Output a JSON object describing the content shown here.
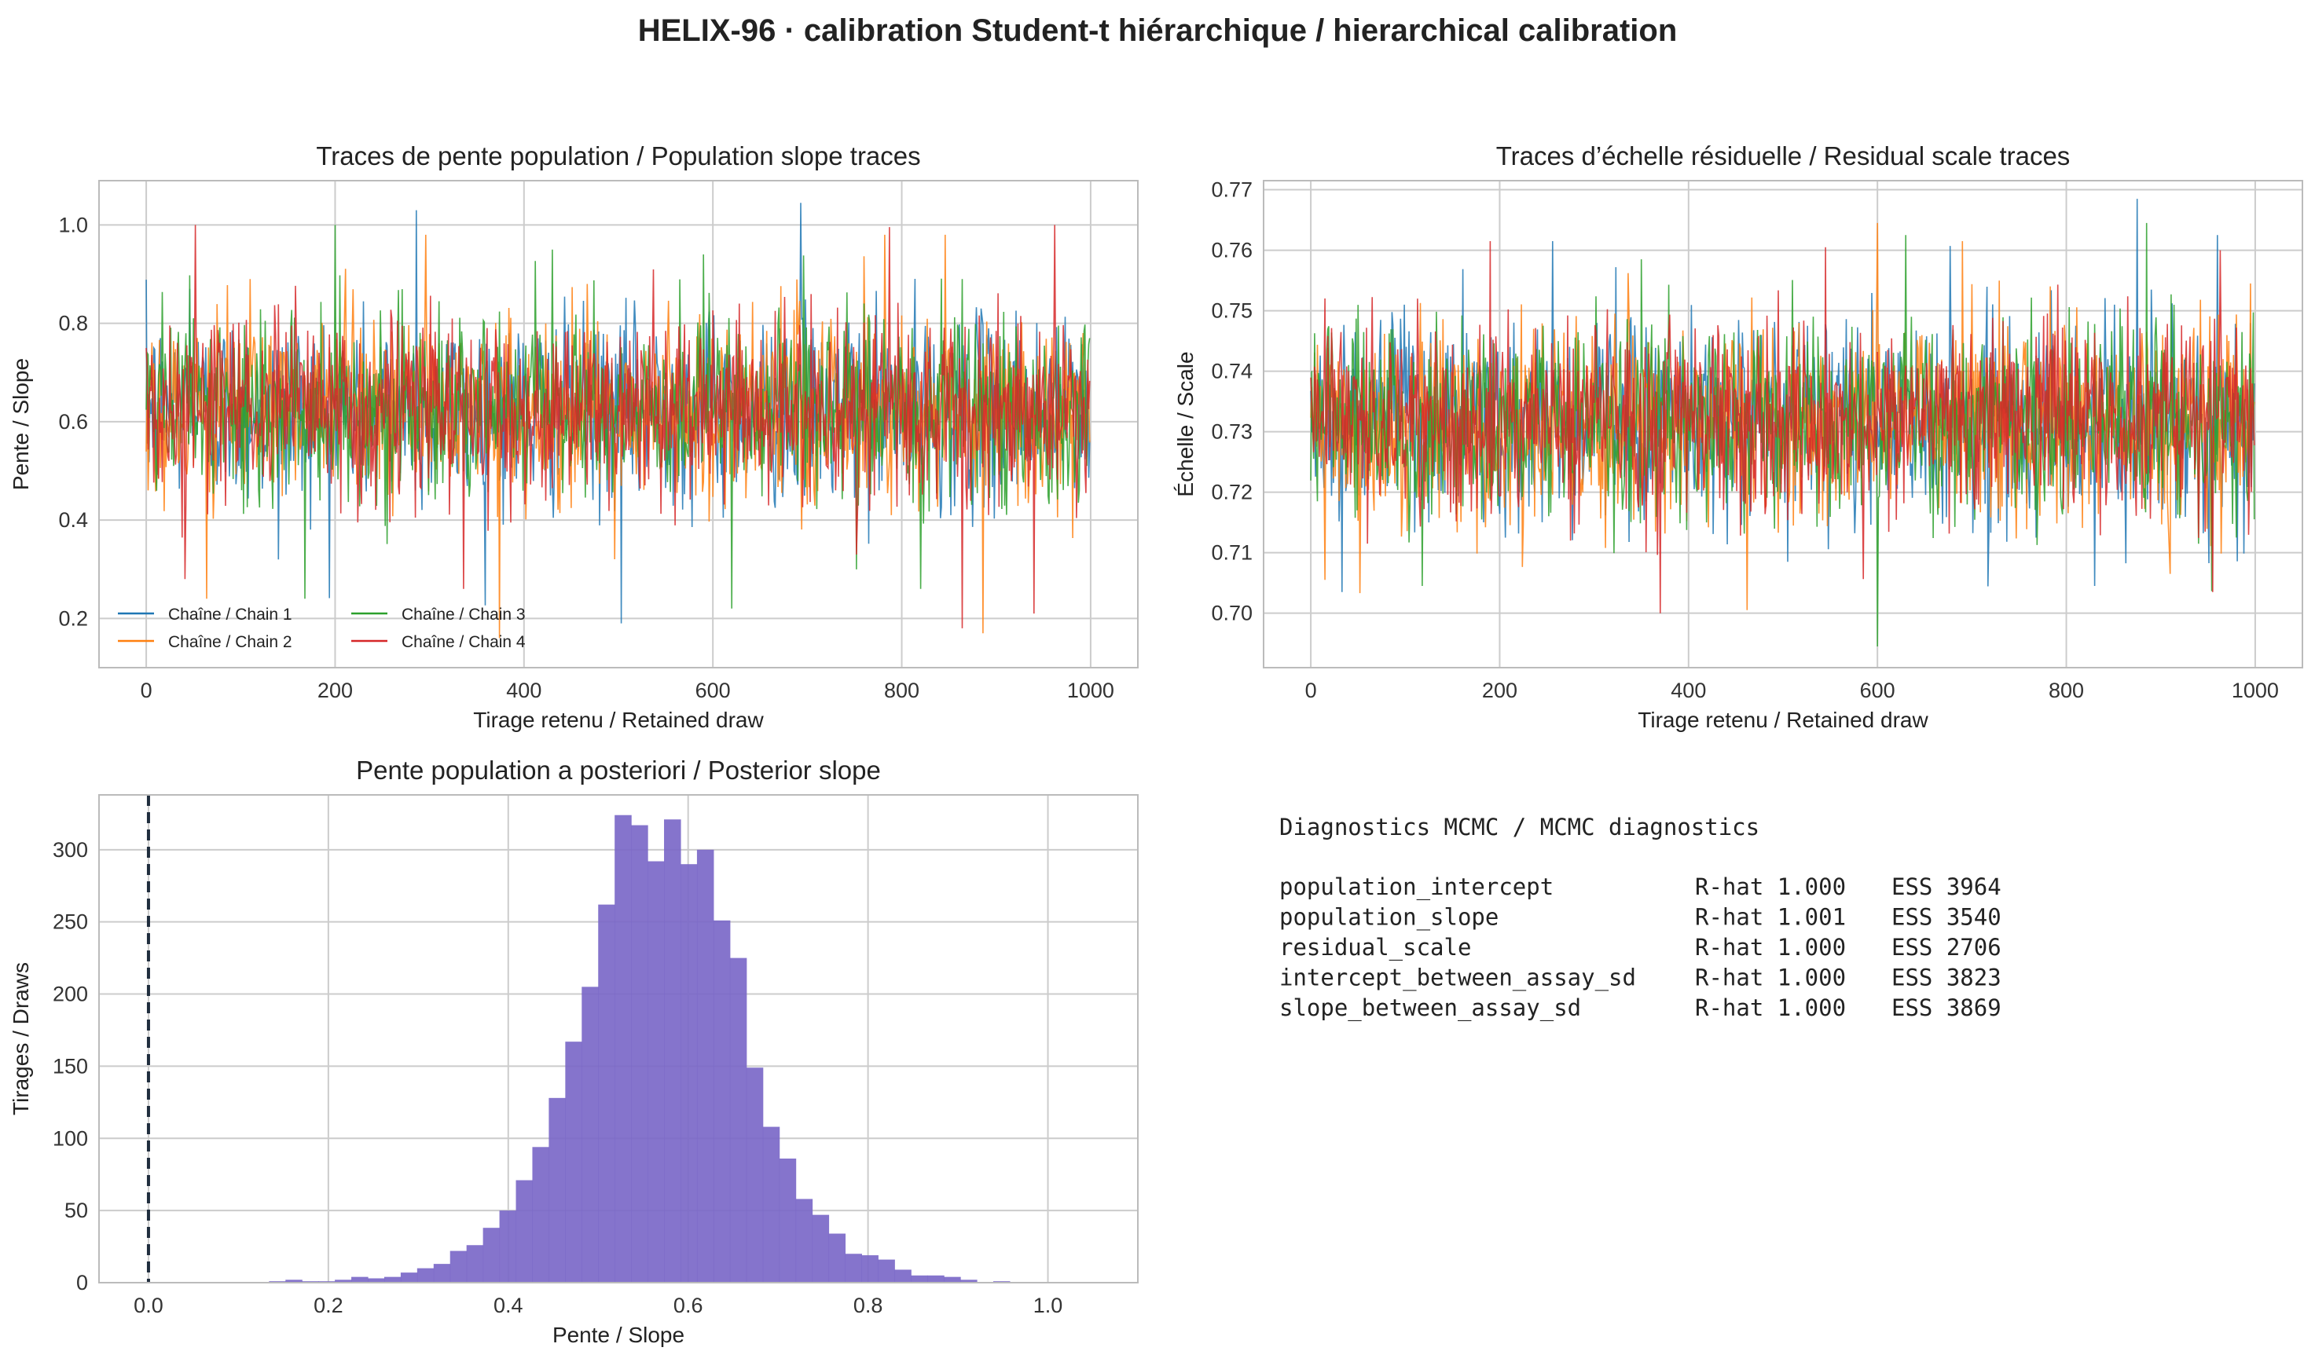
{
  "figure": {
    "title": "HELIX-96 · calibration Student-t hiérarchique / hierarchical calibration"
  },
  "chart_data": [
    {
      "type": "line",
      "id": "slope_traces",
      "title": "Traces de pente population / Population slope traces",
      "xlabel": "Tirage retenu / Retained draw",
      "ylabel": "Pente / Slope",
      "xlim": [
        -50,
        1050
      ],
      "ylim": [
        0.1,
        1.09
      ],
      "xticks": [
        0,
        200,
        400,
        600,
        800,
        1000
      ],
      "yticks": [
        0.2,
        0.4,
        0.6,
        0.8,
        1.0
      ],
      "ytick_labels": [
        "0.2",
        "0.4",
        "0.6",
        "0.8",
        "1.0"
      ],
      "grid": true,
      "legend": "lower-left",
      "n_draws": 1000,
      "series": [
        {
          "name": "Chaîne / Chain 1",
          "color": "#1f77b4",
          "center": 0.625,
          "spread": 0.095,
          "spikes": [
            [
              286,
              1.03
            ],
            [
              693,
              1.045
            ],
            [
              503,
              0.19
            ],
            [
              46,
              0.87
            ],
            [
              140,
              0.32
            ]
          ]
        },
        {
          "name": "Chaîne / Chain 2",
          "color": "#ff7f0e",
          "center": 0.625,
          "spread": 0.095,
          "spikes": [
            [
              64,
              0.24
            ],
            [
              296,
              0.98
            ],
            [
              374,
              0.16
            ],
            [
              886,
              0.17
            ],
            [
              782,
              0.98
            ],
            [
              846,
              0.98
            ],
            [
              110,
              0.89
            ]
          ]
        },
        {
          "name": "Chaîne / Chain 3",
          "color": "#2ca02c",
          "center": 0.625,
          "spread": 0.095,
          "spikes": [
            [
              200,
              1.0
            ],
            [
              168,
              0.24
            ],
            [
              620,
              0.22
            ],
            [
              820,
              0.26
            ],
            [
              430,
              0.95
            ],
            [
              590,
              0.94
            ]
          ]
        },
        {
          "name": "Chaîne / Chain 4",
          "color": "#d62728",
          "center": 0.625,
          "spread": 0.095,
          "spikes": [
            [
              52,
              1.0
            ],
            [
              41,
              0.28
            ],
            [
              864,
              0.18
            ],
            [
              962,
              1.0
            ],
            [
              940,
              0.21
            ],
            [
              336,
              0.26
            ],
            [
              752,
              0.33
            ]
          ]
        }
      ]
    },
    {
      "type": "line",
      "id": "scale_traces",
      "title": "Traces d’échelle résiduelle / Residual scale traces",
      "xlabel": "Tirage retenu / Retained draw",
      "ylabel": "Échelle / Scale",
      "xlim": [
        -50,
        1050
      ],
      "ylim": [
        0.691,
        0.7715
      ],
      "xticks": [
        0,
        200,
        400,
        600,
        800,
        1000
      ],
      "yticks": [
        0.7,
        0.71,
        0.72,
        0.73,
        0.74,
        0.75,
        0.76,
        0.77
      ],
      "ytick_labels": [
        "0.70",
        "0.71",
        "0.72",
        "0.73",
        "0.74",
        "0.75",
        "0.76",
        "0.77"
      ],
      "grid": true,
      "n_draws": 1000,
      "series": [
        {
          "color": "#1f77b4",
          "center": 0.7318,
          "spread": 0.0082,
          "spikes": [
            [
              875,
              0.7685
            ],
            [
              33,
              0.7035
            ],
            [
              256,
              0.7615
            ],
            [
              505,
              0.7085
            ],
            [
              960,
              0.7625
            ],
            [
              830,
              0.7045
            ]
          ]
        },
        {
          "color": "#ff7f0e",
          "center": 0.7318,
          "spread": 0.0082,
          "spikes": [
            [
              600,
              0.7645
            ],
            [
              462,
              0.7005
            ],
            [
              15,
              0.7055
            ],
            [
              690,
              0.7615
            ],
            [
              995,
              0.7545
            ],
            [
              910,
              0.7065
            ]
          ]
        },
        {
          "color": "#2ca02c",
          "center": 0.7318,
          "spread": 0.0082,
          "spikes": [
            [
              600,
              0.6945
            ],
            [
              630,
              0.7625
            ],
            [
              118,
              0.7045
            ],
            [
              885,
              0.7645
            ],
            [
              980,
              0.7125
            ],
            [
              350,
              0.7585
            ]
          ]
        },
        {
          "color": "#d62728",
          "center": 0.7318,
          "spread": 0.0082,
          "spikes": [
            [
              370,
              0.7
            ],
            [
              190,
              0.7615
            ],
            [
              955,
              0.7035
            ],
            [
              963,
              0.76
            ],
            [
              545,
              0.7605
            ],
            [
              60,
              0.7115
            ]
          ]
        }
      ]
    },
    {
      "type": "bar",
      "id": "slope_histogram",
      "title": "Pente population a posteriori / Posterior slope",
      "xlabel": "Pente / Slope",
      "ylabel": "Tirages / Draws",
      "xlim": [
        -0.055,
        1.1
      ],
      "ylim": [
        0,
        338
      ],
      "xticks": [
        0.0,
        0.2,
        0.4,
        0.6,
        0.8,
        1.0
      ],
      "xtick_labels": [
        "0.0",
        "0.2",
        "0.4",
        "0.6",
        "0.8",
        "1.0"
      ],
      "yticks": [
        0,
        50,
        100,
        150,
        200,
        250,
        300
      ],
      "grid": true,
      "color": "#7b68c8",
      "reference_line": {
        "x": 0.0,
        "style": "dashed",
        "color": "#1f2d3d"
      },
      "bin_start": 0.134,
      "bin_width": 0.0183,
      "counts": [
        1,
        2,
        1,
        1,
        2,
        4,
        3,
        4,
        7,
        10,
        13,
        22,
        26,
        38,
        50,
        71,
        94,
        128,
        167,
        205,
        262,
        324,
        317,
        292,
        321,
        290,
        300,
        251,
        225,
        149,
        108,
        86,
        58,
        47,
        34,
        20,
        19,
        16,
        9,
        5,
        5,
        4,
        2,
        0,
        1
      ]
    }
  ],
  "diagnostics": {
    "title": "Diagnostics MCMC / MCMC diagnostics",
    "rows": [
      {
        "param": "population_intercept",
        "rhat": "R-hat 1.000",
        "ess": "ESS 3964"
      },
      {
        "param": "population_slope",
        "rhat": "R-hat 1.001",
        "ess": "ESS 3540"
      },
      {
        "param": "residual_scale",
        "rhat": "R-hat 1.000",
        "ess": "ESS 2706"
      },
      {
        "param": "intercept_between_assay_sd",
        "rhat": "R-hat 1.000",
        "ess": "ESS 3823"
      },
      {
        "param": "slope_between_assay_sd",
        "rhat": "R-hat 1.000",
        "ess": "ESS 3869"
      }
    ]
  }
}
